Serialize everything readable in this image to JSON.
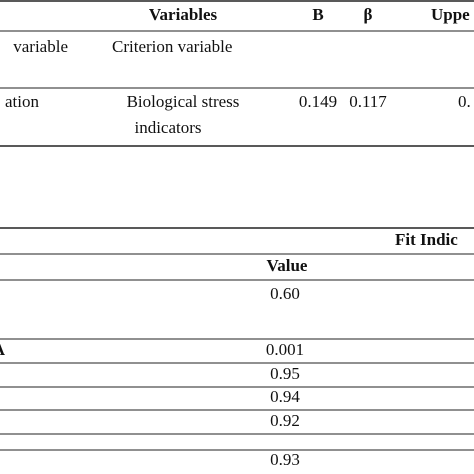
{
  "table1": {
    "header": [
      "Variables",
      "B",
      "β",
      "Uppe"
    ],
    "subheader": [
      "variable",
      "Criterion variable"
    ],
    "rows": [
      [
        "ation",
        "Biological stress",
        "indicators",
        "0.149",
        "0.117",
        "0."
      ]
    ]
  },
  "table2": {
    "title": "Fit Indic",
    "header": "Value",
    "rows": [
      [
        "0.60"
      ],
      [
        "A",
        "0.001"
      ],
      [
        "0.95"
      ],
      [
        "0.94"
      ],
      [
        "0.92"
      ],
      [
        "0.93"
      ]
    ]
  }
}
